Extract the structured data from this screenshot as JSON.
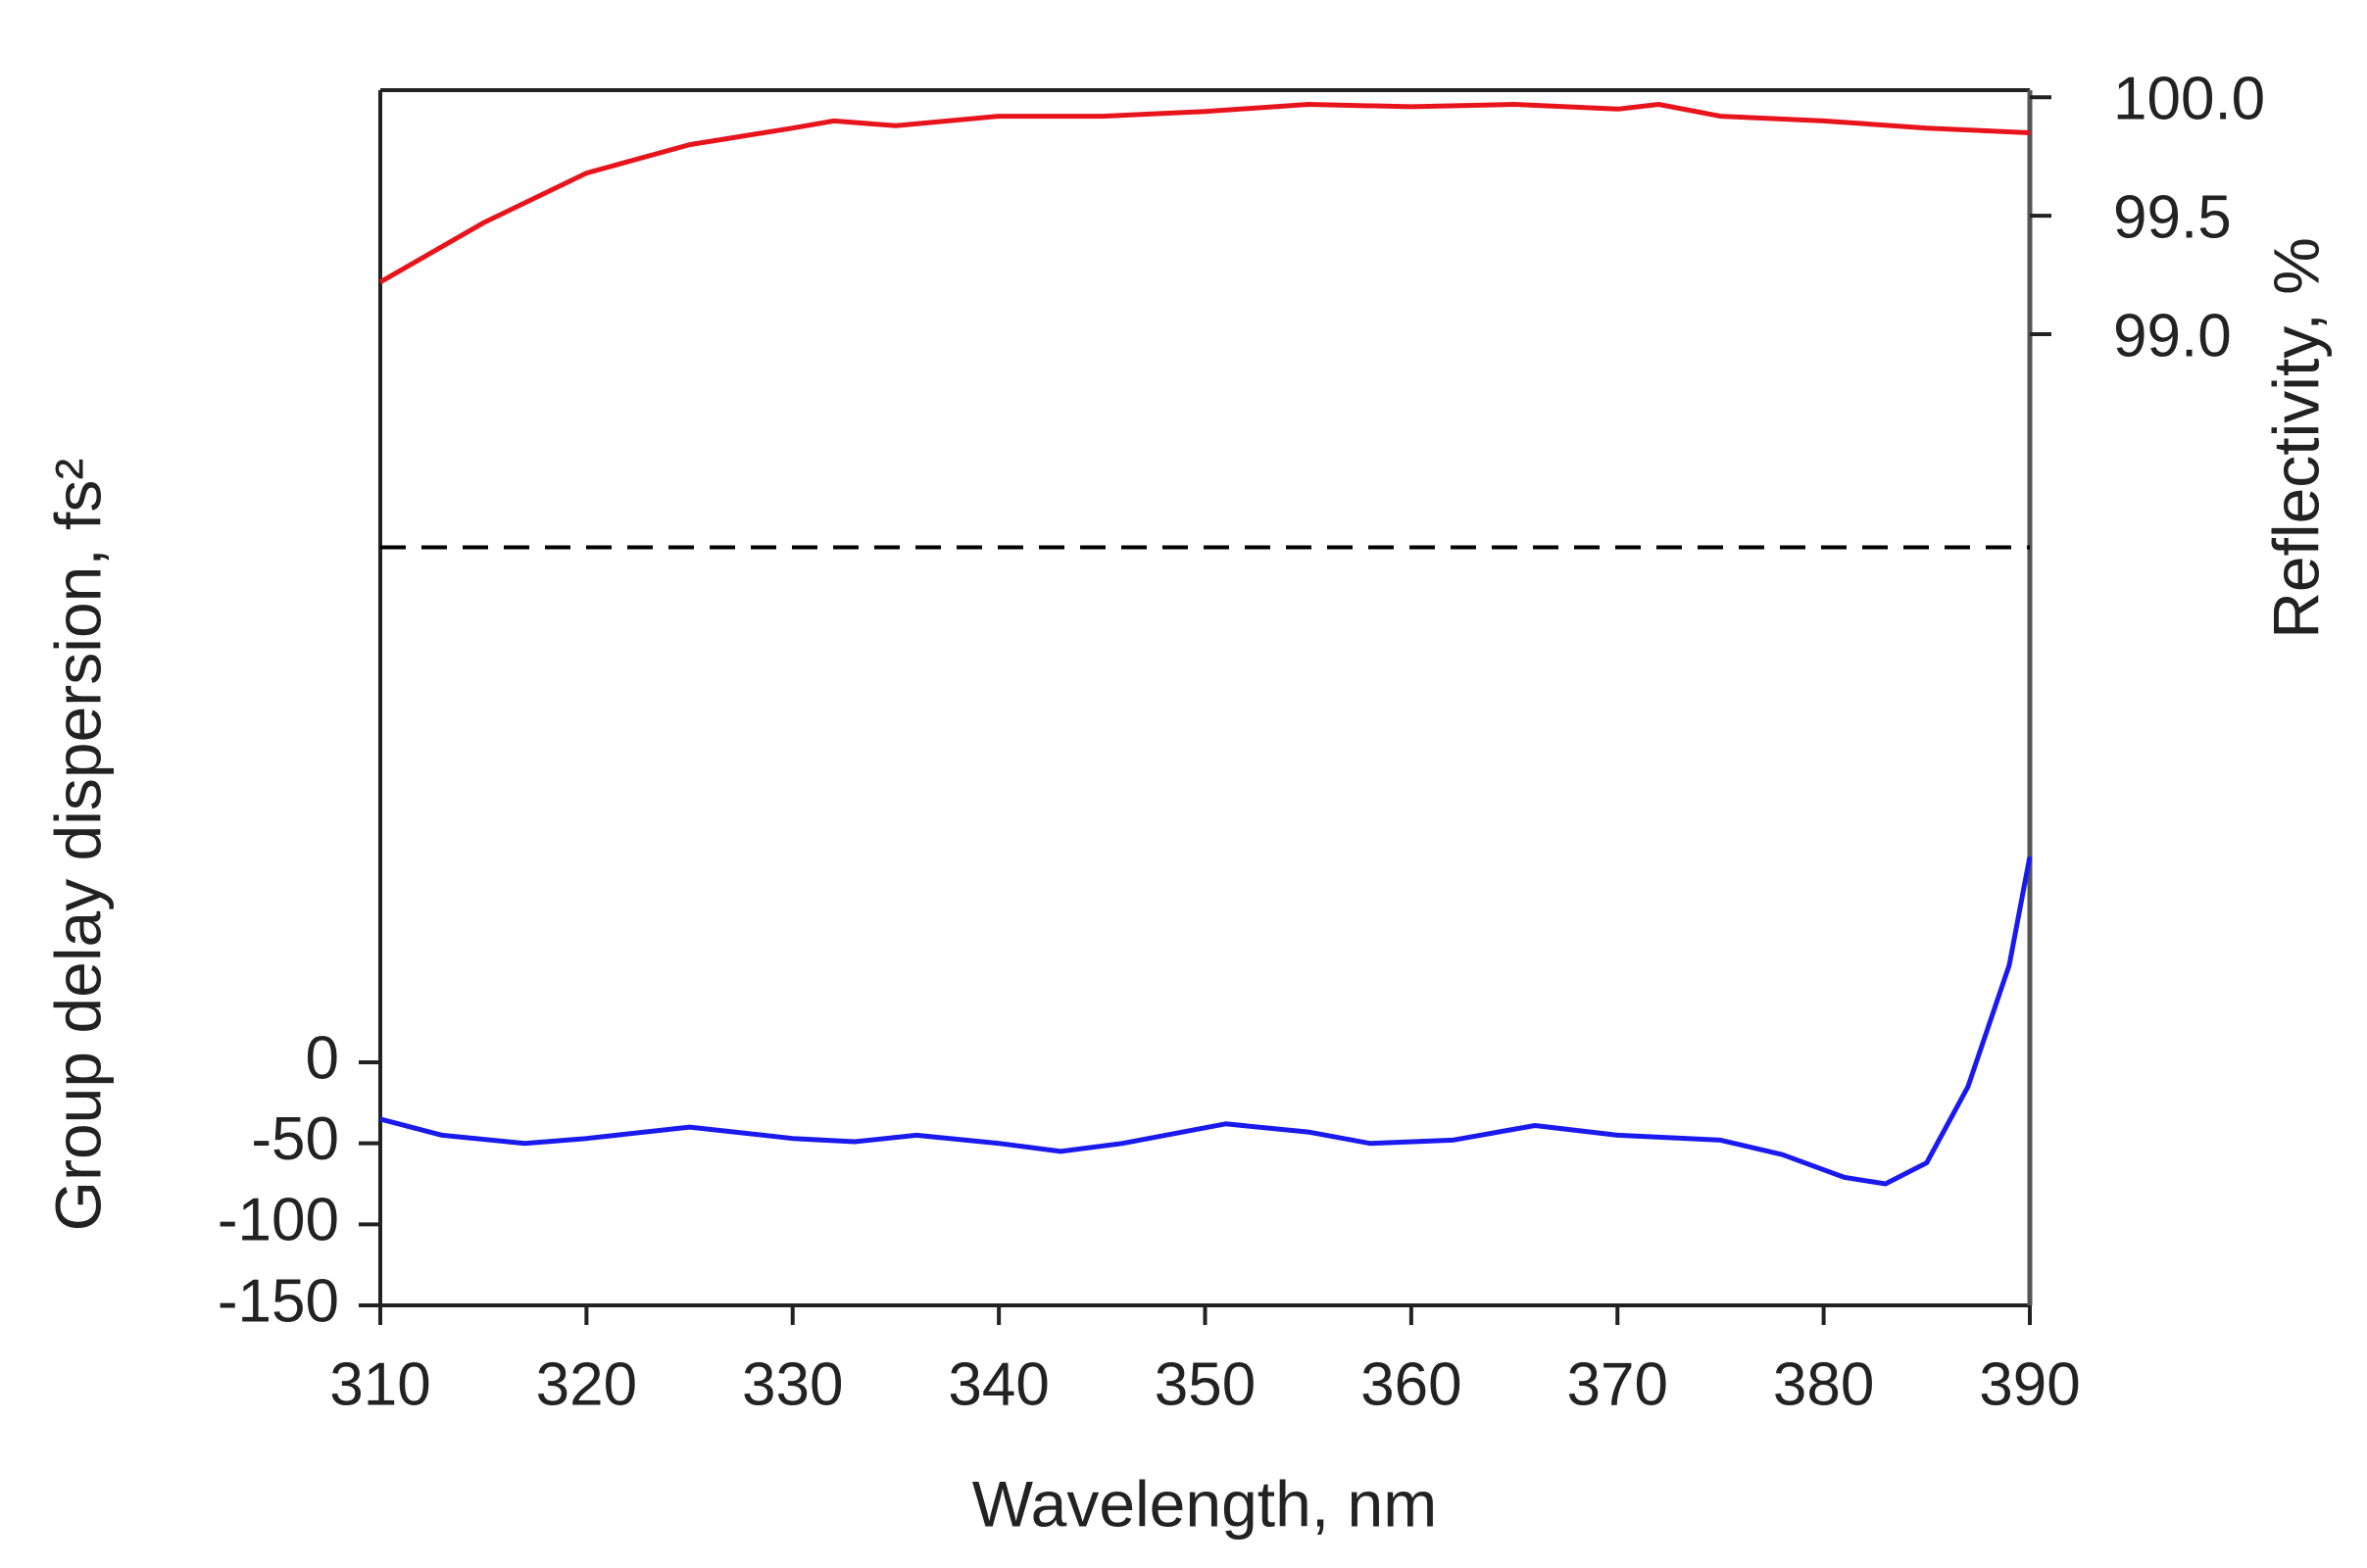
{
  "chart_data": {
    "type": "line",
    "x_label": "Wavelength, nm",
    "y_label": "Group delay dispersion, fs²",
    "y2_label": "Reflectivity, %",
    "xlim": [
      310,
      390
    ],
    "xticks": [
      310,
      320,
      330,
      340,
      350,
      360,
      370,
      380,
      390
    ],
    "ylim": [
      -150,
      600
    ],
    "yticks": [
      0,
      -50,
      -100,
      -150
    ],
    "y2lim": [
      94.9,
      100.03
    ],
    "y2ticks": [
      {
        "value": 100,
        "label": "100.0"
      },
      {
        "value": 99.5,
        "label": "99.5"
      },
      {
        "value": 99,
        "label": "99.0"
      }
    ],
    "reference_line": {
      "value": 98.1,
      "axis": "y2",
      "color": "#000000",
      "style": "dashed"
    },
    "series": [
      {
        "color": "#e8141c",
        "axis": "y2",
        "x": [
          310,
          315,
          320,
          325,
          330,
          332,
          335,
          340,
          345,
          350,
          355,
          360,
          365,
          370,
          372,
          375,
          380,
          385,
          390
        ],
        "values": [
          99.22,
          99.47,
          99.68,
          99.8,
          99.87,
          99.9,
          99.88,
          99.92,
          99.92,
          99.94,
          99.97,
          99.96,
          99.97,
          99.95,
          99.97,
          99.92,
          99.9,
          99.87,
          99.85
        ]
      },
      {
        "color": "#1a1aee",
        "axis": "y",
        "x": [
          310,
          313,
          317,
          320,
          325,
          330,
          333,
          336,
          340,
          343,
          346,
          351,
          355,
          358,
          362,
          366,
          370,
          375,
          378,
          381,
          383,
          385,
          387,
          389,
          390
        ],
        "values": [
          -35,
          -45,
          -50,
          -47,
          -40,
          -47,
          -49,
          -45,
          -50,
          -55,
          -50,
          -38,
          -43,
          -50,
          -48,
          -39,
          -45,
          -48,
          -57,
          -71,
          -75,
          -62,
          -15,
          60,
          127
        ]
      }
    ]
  }
}
